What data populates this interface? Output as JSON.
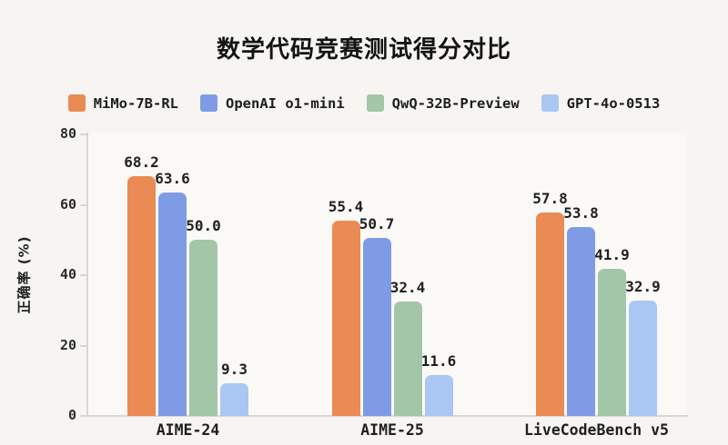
{
  "title": "数学代码竞赛测试得分对比",
  "chart_data": {
    "type": "bar",
    "title": "数学代码竞赛测试得分对比",
    "categories": [
      "AIME-24",
      "AIME-25",
      "LiveCodeBench v5"
    ],
    "series": [
      {
        "name": "MiMo-7B-RL",
        "color": "#E98B53",
        "values": [
          68.2,
          55.4,
          57.8
        ]
      },
      {
        "name": "OpenAI o1-mini",
        "color": "#809BE5",
        "values": [
          63.6,
          50.7,
          53.8
        ]
      },
      {
        "name": "QwQ-32B-Preview",
        "color": "#A3C6A8",
        "values": [
          50.0,
          32.4,
          41.9
        ]
      },
      {
        "name": "GPT-4o-0513",
        "color": "#A9C7F2",
        "values": [
          9.3,
          11.6,
          32.9
        ]
      }
    ],
    "xlabel": "",
    "ylabel": "正确率 (%)",
    "ylim": [
      0,
      80
    ],
    "yticks": [
      0,
      20,
      40,
      60,
      80
    ],
    "grid": false,
    "legend_position": "top",
    "value_labels": true,
    "value_label_format": "one_decimal"
  },
  "colors": {
    "page_background": "#F6F5F2",
    "plot_background": "#FAF9F6",
    "axis": "#D7D6D2",
    "text": "#1F1F1F"
  }
}
